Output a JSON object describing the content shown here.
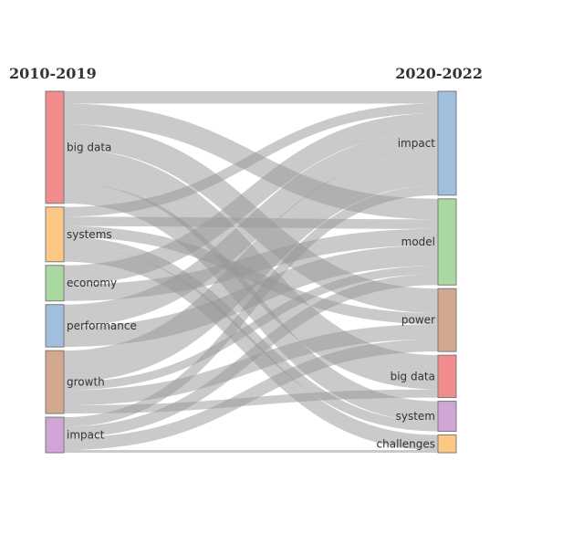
{
  "columns": {
    "left_title": "2010-2019",
    "right_title": "2020-2022"
  },
  "chart_data": {
    "type": "sankey",
    "sources": [
      {
        "label": "big data",
        "color": "#f28b8c"
      },
      {
        "label": "systems",
        "color": "#fdc785"
      },
      {
        "label": "economy",
        "color": "#a9d9a0"
      },
      {
        "label": "performance",
        "color": "#9fbfdd"
      },
      {
        "label": "growth",
        "color": "#d4a78f"
      },
      {
        "label": "impact",
        "color": "#cfa6d5"
      }
    ],
    "targets": [
      {
        "label": "impact",
        "color": "#9fbfdd"
      },
      {
        "label": "model",
        "color": "#a9d9a0"
      },
      {
        "label": "power",
        "color": "#d4a78f"
      },
      {
        "label": "big data",
        "color": "#f28b8c"
      },
      {
        "label": "system",
        "color": "#cfa6d5"
      },
      {
        "label": "challenges",
        "color": "#fdc785"
      }
    ],
    "links": [
      {
        "source": "big data",
        "target": "model",
        "value": 15
      },
      {
        "source": "big data",
        "target": "power",
        "value": 18
      },
      {
        "source": "big data",
        "target": "big data",
        "value": 25
      },
      {
        "source": "big data",
        "target": "system",
        "value": 15
      },
      {
        "source": "big data",
        "target": "impact",
        "value": 9
      },
      {
        "source": "systems",
        "target": "impact",
        "value": 7
      },
      {
        "source": "systems",
        "target": "model",
        "value": 7
      },
      {
        "source": "systems",
        "target": "system",
        "value": 7
      },
      {
        "source": "systems",
        "target": "challenges",
        "value": 11
      },
      {
        "source": "systems",
        "target": "power",
        "value": 8
      },
      {
        "source": "economy",
        "target": "impact",
        "value": 14
      },
      {
        "source": "economy",
        "target": "model",
        "value": 12
      },
      {
        "source": "performance",
        "target": "impact",
        "value": 16
      },
      {
        "source": "performance",
        "target": "model",
        "value": 15
      },
      {
        "source": "growth",
        "target": "impact",
        "value": 23
      },
      {
        "source": "growth",
        "target": "model",
        "value": 6
      },
      {
        "source": "growth",
        "target": "power",
        "value": 11
      },
      {
        "source": "growth",
        "target": "big data",
        "value": 6
      },
      {
        "source": "impact",
        "target": "impact",
        "value": 7
      },
      {
        "source": "impact",
        "target": "power",
        "value": 9
      },
      {
        "source": "impact",
        "target": "model",
        "value": 8
      },
      {
        "source": "impact",
        "target": "challenges",
        "value": 2
      }
    ]
  }
}
